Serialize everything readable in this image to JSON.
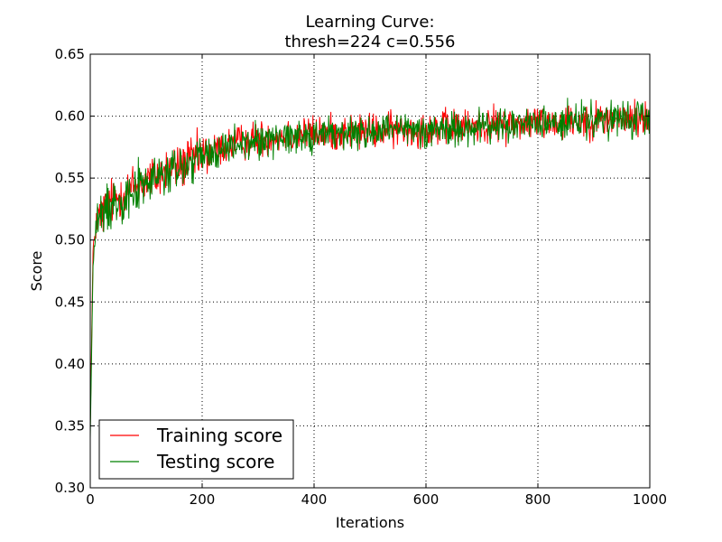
{
  "chart_data": {
    "type": "line",
    "title_line1": "Learning Curve:",
    "title_line2": "thresh=224 c=0.556",
    "xlabel": "Iterations",
    "ylabel": "Score",
    "xlim": [
      0,
      1000
    ],
    "ylim": [
      0.3,
      0.65
    ],
    "grid": true,
    "legend_position": "bottom-left",
    "x_ticks": [
      0,
      200,
      400,
      600,
      800,
      1000
    ],
    "x_tick_labels": [
      "0",
      "200",
      "400",
      "600",
      "800",
      "1000"
    ],
    "y_ticks": [
      0.3,
      0.35,
      0.4,
      0.45,
      0.5,
      0.55,
      0.6,
      0.65
    ],
    "y_tick_labels": [
      "0.30",
      "0.35",
      "0.40",
      "0.45",
      "0.50",
      "0.55",
      "0.60",
      "0.65"
    ],
    "x_values_note": "",
    "x": [
      0,
      5,
      10,
      20,
      30,
      50,
      75,
      100,
      150,
      200,
      250,
      300,
      350,
      400,
      500,
      600,
      700,
      800,
      900,
      1000
    ],
    "series": [
      {
        "name": "Training score",
        "color": "#ff0000",
        "values": [
          0.35,
          0.49,
          0.515,
          0.52,
          0.528,
          0.535,
          0.542,
          0.548,
          0.558,
          0.568,
          0.577,
          0.582,
          0.585,
          0.586,
          0.588,
          0.59,
          0.592,
          0.595,
          0.597,
          0.598
        ]
      },
      {
        "name": "Testing score",
        "color": "#008000",
        "values": [
          0.34,
          0.48,
          0.512,
          0.518,
          0.526,
          0.533,
          0.54,
          0.546,
          0.556,
          0.566,
          0.575,
          0.58,
          0.584,
          0.585,
          0.587,
          0.589,
          0.591,
          0.594,
          0.596,
          0.597
        ]
      }
    ]
  }
}
